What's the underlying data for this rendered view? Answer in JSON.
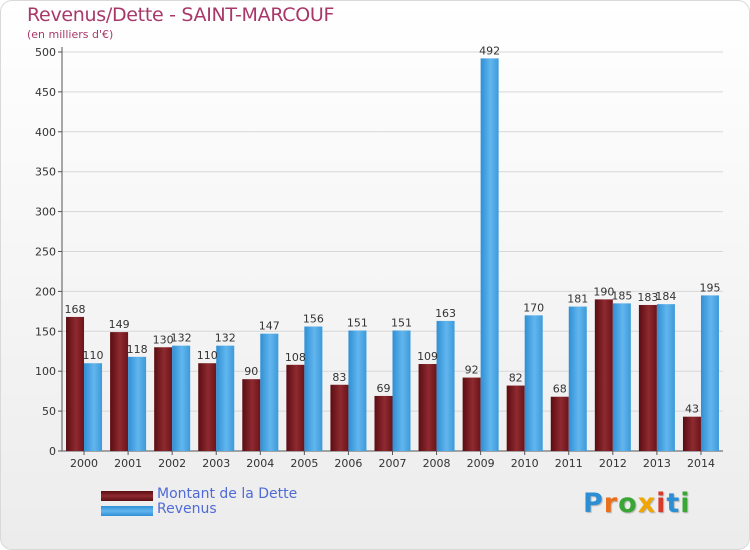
{
  "header": {
    "title": "Revenus/Dette - SAINT-MARCOUF",
    "subtitle": "(en milliers d'€)"
  },
  "chart_data": {
    "type": "bar",
    "categories": [
      "2000",
      "2001",
      "2002",
      "2003",
      "2004",
      "2005",
      "2006",
      "2007",
      "2008",
      "2009",
      "2010",
      "2011",
      "2012",
      "2013",
      "2014"
    ],
    "series": [
      {
        "name": "Montant de la Dette",
        "color": "#7a1f24",
        "values": [
          168,
          149,
          130,
          110,
          90,
          108,
          83,
          69,
          109,
          92,
          82,
          68,
          190,
          183,
          43
        ]
      },
      {
        "name": "Revenus",
        "color": "#4aa7e6",
        "values": [
          110,
          118,
          132,
          132,
          147,
          156,
          151,
          151,
          163,
          492,
          170,
          181,
          185,
          184,
          195
        ]
      }
    ],
    "ylim": [
      0,
      500
    ],
    "yticks": [
      0,
      50,
      100,
      150,
      200,
      250,
      300,
      350,
      400,
      450,
      500
    ],
    "grid": true,
    "legend_position": "bottom-left"
  },
  "legend": [
    {
      "label": "Montant de la Dette",
      "color": "#7a1f24"
    },
    {
      "label": "Revenus",
      "color": "#4aa7e6"
    }
  ],
  "logo": {
    "letters": [
      {
        "ch": "P",
        "color": "#2c8fd6"
      },
      {
        "ch": "r",
        "color": "#e96f1a"
      },
      {
        "ch": "o",
        "color": "#3aa635"
      },
      {
        "ch": "x",
        "color": "#f0a500"
      },
      {
        "ch": "i",
        "color": "#d63a2a"
      },
      {
        "ch": "t",
        "color": "#2c8fd6"
      },
      {
        "ch": "i",
        "color": "#3aa635"
      }
    ]
  }
}
